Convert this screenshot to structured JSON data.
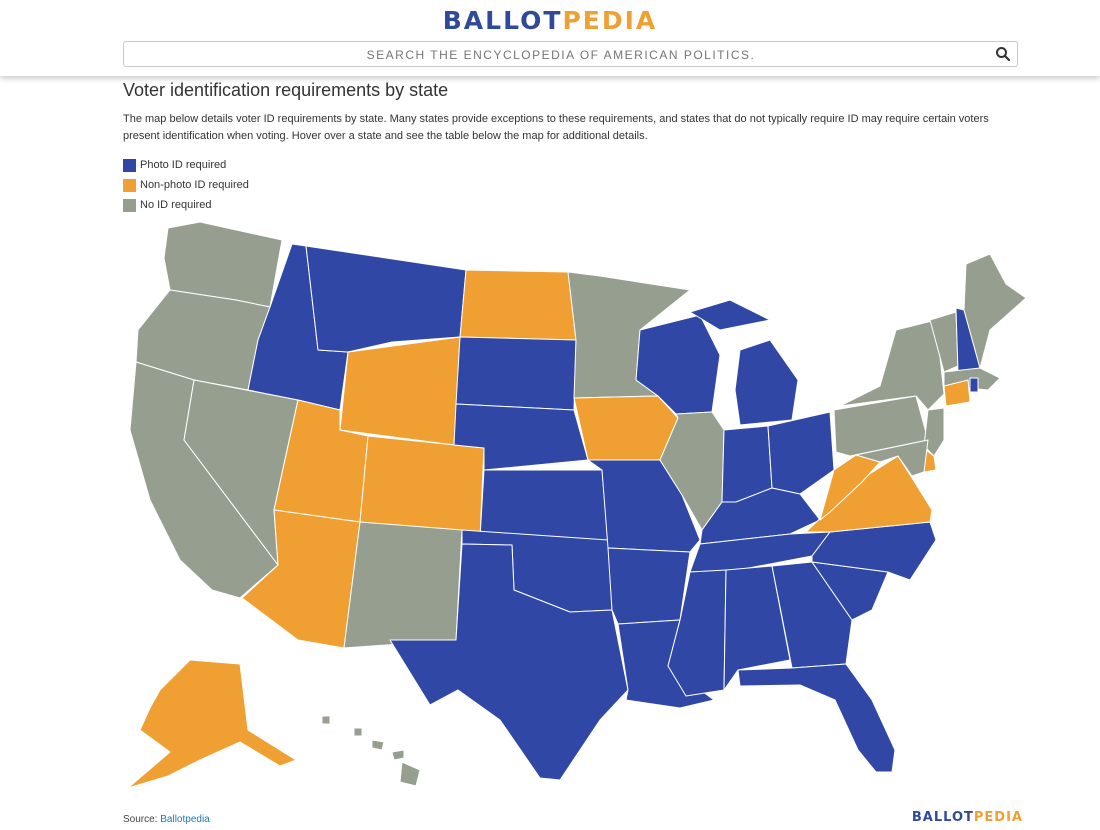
{
  "header": {
    "logo_part1": "BALLOT",
    "logo_part2": "PEDIA",
    "search_placeholder": "SEARCH THE ENCYCLOPEDIA OF AMERICAN POLITICS.",
    "search_icon": "magnifier-icon"
  },
  "page": {
    "title": "Voter identification requirements by state",
    "description": "The map below details voter ID requirements by state. Many states provide exceptions to these requirements, and states that do not typically require ID may require certain voters present identification when voting. Hover over a state and see the table below the map for additional details."
  },
  "legend": [
    {
      "label": "Photo ID required",
      "color": "#3047a6"
    },
    {
      "label": "Non-photo ID required",
      "color": "#f0a033"
    },
    {
      "label": "No ID required",
      "color": "#969e90"
    }
  ],
  "states": {
    "Washington": "none",
    "Oregon": "none",
    "California": "none",
    "Nevada": "none",
    "Idaho": "photo",
    "Montana": "photo",
    "Wyoming": "nonphoto",
    "Utah": "nonphoto",
    "Colorado": "nonphoto",
    "Arizona": "nonphoto",
    "New Mexico": "none",
    "North Dakota": "nonphoto",
    "South Dakota": "photo",
    "Nebraska": "photo",
    "Kansas": "photo",
    "Oklahoma": "photo",
    "Texas": "photo",
    "Minnesota": "none",
    "Iowa": "nonphoto",
    "Missouri": "photo",
    "Arkansas": "photo",
    "Louisiana": "photo",
    "Wisconsin": "photo",
    "Illinois": "none",
    "Michigan": "photo",
    "Indiana": "photo",
    "Ohio": "photo",
    "Kentucky": "photo",
    "Tennessee": "photo",
    "Mississippi": "photo",
    "Alabama": "photo",
    "Georgia": "photo",
    "Florida": "photo",
    "South Carolina": "photo",
    "North Carolina": "photo",
    "Virginia": "nonphoto",
    "West Virginia": "nonphoto",
    "Pennsylvania": "none",
    "New York": "none",
    "Vermont": "none",
    "New Hampshire": "photo",
    "Maine": "none",
    "Massachusetts": "none",
    "Rhode Island": "photo",
    "Connecticut": "nonphoto",
    "New Jersey": "none",
    "Delaware": "nonphoto",
    "Maryland": "none",
    "Alaska": "nonphoto",
    "Hawaii": "none"
  },
  "footer": {
    "source_label": "Source:",
    "source_link": "Ballotpedia",
    "logo_part1": "BALLOT",
    "logo_part2": "PEDIA"
  }
}
